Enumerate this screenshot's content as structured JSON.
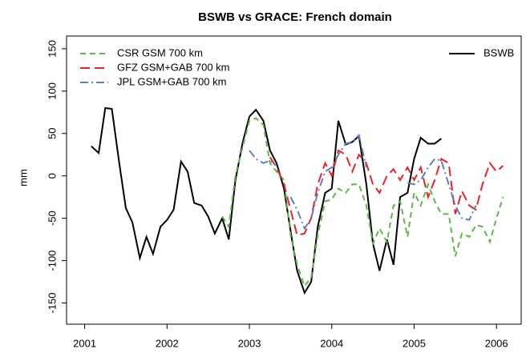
{
  "chart_data": {
    "type": "line",
    "title": "BSWB vs GRACE: French domain",
    "ylabel": "mm",
    "x": [
      2001.08,
      2001.17,
      2001.25,
      2001.33,
      2001.42,
      2001.5,
      2001.58,
      2001.67,
      2001.75,
      2001.83,
      2001.92,
      2002,
      2002.08,
      2002.17,
      2002.25,
      2002.33,
      2002.42,
      2002.5,
      2002.58,
      2002.67,
      2002.75,
      2002.83,
      2002.92,
      2003,
      2003.08,
      2003.17,
      2003.25,
      2003.33,
      2003.42,
      2003.5,
      2003.58,
      2003.67,
      2003.75,
      2003.83,
      2003.92,
      2004,
      2004.08,
      2004.17,
      2004.25,
      2004.33,
      2004.42,
      2004.5,
      2004.58,
      2004.67,
      2004.75,
      2004.83,
      2004.92,
      2005,
      2005.08,
      2005.17,
      2005.25,
      2005.33,
      2005.42,
      2005.5,
      2005.58,
      2005.67,
      2005.75,
      2005.83,
      2005.92,
      2006,
      2006.08,
      2006.17
    ],
    "series": [
      {
        "name": "BSWB",
        "color": "#000000",
        "dash": "none",
        "legend": "right",
        "values": [
          35,
          27,
          80,
          79,
          15,
          -38,
          -55,
          -97,
          -72,
          -92,
          -60,
          -52,
          -40,
          17,
          5,
          -32,
          -35,
          -48,
          -68,
          -50,
          -75,
          -5,
          40,
          70,
          78,
          65,
          30,
          15,
          -15,
          -65,
          -112,
          -138,
          -125,
          -60,
          -20,
          -15,
          65,
          37,
          40,
          47,
          -10,
          -80,
          -112,
          -75,
          -105,
          -25,
          -20,
          20,
          45,
          38,
          38,
          44,
          null,
          null,
          null,
          null,
          null,
          null,
          null,
          null,
          null,
          null
        ]
      },
      {
        "name": "CSR GSM 700 km",
        "color": "#5cb84a",
        "dash": "7 5",
        "legend": "left",
        "values": [
          null,
          null,
          null,
          null,
          null,
          null,
          null,
          null,
          null,
          null,
          null,
          null,
          null,
          null,
          null,
          null,
          null,
          null,
          null,
          -48,
          -60,
          0,
          35,
          65,
          68,
          60,
          15,
          5,
          -5,
          -70,
          -105,
          -130,
          -120,
          -70,
          -30,
          -28,
          -15,
          -20,
          -10,
          -10,
          -35,
          -80,
          -62,
          -78,
          -35,
          -30,
          -72,
          -20,
          -35,
          -10,
          -30,
          -45,
          -45,
          -95,
          -68,
          -72,
          -58,
          -60,
          -78,
          -50,
          -25,
          null
        ]
      },
      {
        "name": "GFZ GSM+GAB 700 km",
        "color": "#e8232a",
        "dash": "12 6",
        "legend": "left",
        "values": [
          null,
          null,
          null,
          null,
          null,
          null,
          null,
          null,
          null,
          null,
          null,
          null,
          null,
          null,
          null,
          null,
          null,
          null,
          null,
          null,
          null,
          null,
          null,
          null,
          null,
          null,
          22,
          10,
          -10,
          -40,
          -70,
          -68,
          -50,
          -10,
          15,
          0,
          30,
          25,
          5,
          25,
          15,
          -10,
          -20,
          0,
          8,
          -5,
          10,
          -5,
          10,
          -25,
          -5,
          20,
          15,
          -45,
          -18,
          -35,
          -40,
          -10,
          15,
          5,
          12,
          null
        ]
      },
      {
        "name": "JPL GSM+GAB 700 km",
        "color": "#5b7fc4",
        "dash": "10 4 2 4",
        "legend": "left",
        "values": [
          null,
          null,
          null,
          null,
          null,
          null,
          null,
          null,
          null,
          null,
          null,
          null,
          null,
          null,
          null,
          null,
          null,
          null,
          null,
          null,
          null,
          null,
          null,
          30,
          20,
          15,
          18,
          12,
          null,
          -25,
          -40,
          -62,
          -50,
          -20,
          5,
          10,
          25,
          38,
          40,
          48,
          10,
          null,
          null,
          null,
          null,
          null,
          -8,
          -10,
          -5,
          10,
          20,
          18,
          -10,
          -35,
          -50,
          -52,
          -35,
          null,
          null,
          null,
          null,
          null
        ]
      }
    ],
    "xlim": [
      2000.78,
      2006.3
    ],
    "xticks": [
      2001,
      2002,
      2003,
      2004,
      2005,
      2006
    ],
    "ylim": [
      -175,
      165
    ],
    "yticks": [
      -150,
      -100,
      -50,
      0,
      50,
      100,
      150
    ]
  }
}
